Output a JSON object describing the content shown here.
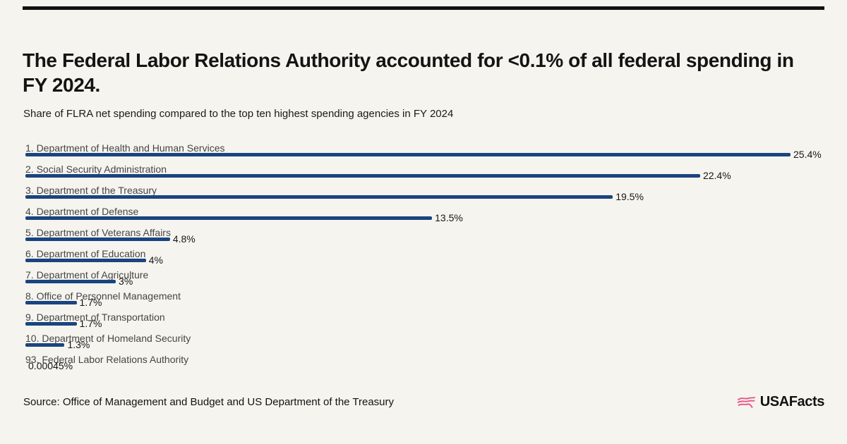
{
  "colors": {
    "background": "#F5F4EE",
    "top_rule": "#121212",
    "bar": "#1A4480",
    "label_text": "#454545",
    "value_text": "#161616",
    "brand_pink": "#EC4D87"
  },
  "header": {
    "title": "The Federal Labor Relations Authority accounted for <0.1% of all federal spending in\nFY 2024."
  },
  "chart_data": {
    "type": "bar",
    "orientation": "horizontal",
    "title": "Share of FLRA net spending compared to the top ten highest spending agencies in FY 2024",
    "xlabel": "",
    "ylabel": "",
    "unit": "%",
    "xlim": [
      0,
      25.4
    ],
    "grid": false,
    "legend": false,
    "bar_color": "#1A4480",
    "categories": [
      "1. Department of Health and Human Services",
      "2. Social Security Administration",
      "3. Department of the Treasury",
      "4. Department of Defense",
      "5. Department of Veterans Affairs",
      "6. Department of Education",
      "7. Department of Agriculture",
      "8. Office of Personnel Management",
      "9. Department of Transportation",
      "10. Department of Homeland Security",
      "93. Federal Labor Relations Authority"
    ],
    "values": [
      25.4,
      22.4,
      19.5,
      13.5,
      4.8,
      4,
      3,
      1.7,
      1.7,
      1.3,
      0.00045
    ],
    "value_labels": [
      "25.4%",
      "22.4%",
      "19.5%",
      "13.5%",
      "4.8%",
      "4%",
      "3%",
      "1.7%",
      "1.7%",
      "1.3%",
      "0.00045%"
    ]
  },
  "source": {
    "text": "Source: Office of Management and Budget and US Department of the Treasury"
  },
  "branding": {
    "logo_text": "USAFacts"
  }
}
